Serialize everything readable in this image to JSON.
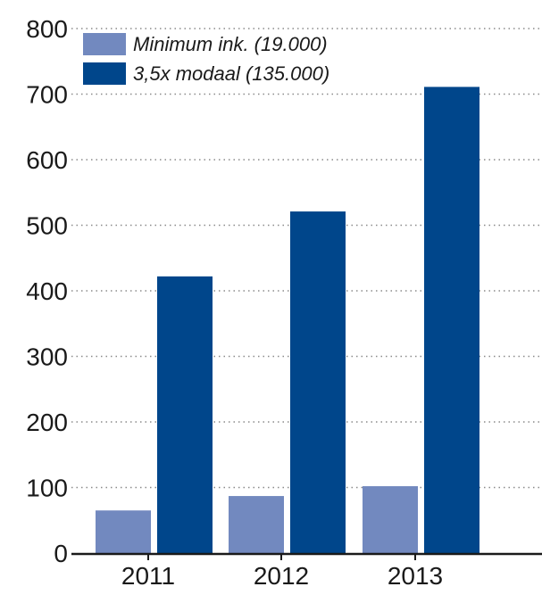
{
  "chart_data": {
    "type": "bar",
    "categories": [
      "2011",
      "2012",
      "2013"
    ],
    "series": [
      {
        "name": "Minimum ink. (19.000)",
        "values": [
          65,
          87,
          102
        ],
        "color": "#7289bf"
      },
      {
        "name": "3,5x modaal (135.000)",
        "values": [
          422,
          521,
          711
        ],
        "color": "#00468b"
      }
    ],
    "ylim": [
      0,
      800
    ],
    "yticks": [
      0,
      100,
      200,
      300,
      400,
      500,
      600,
      700,
      800
    ],
    "grid": true,
    "legend_position": "top-left"
  }
}
